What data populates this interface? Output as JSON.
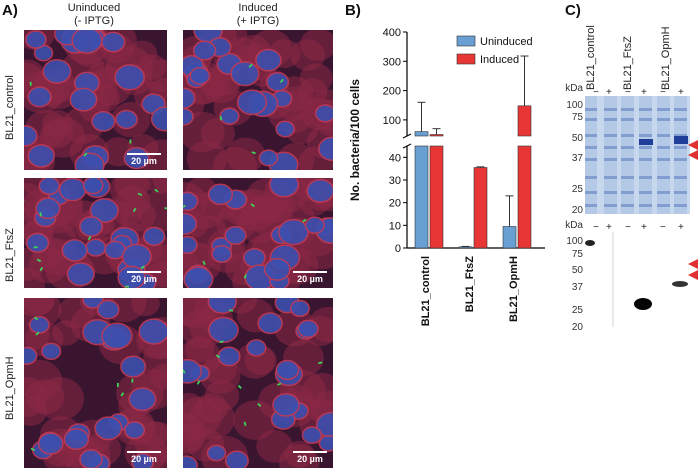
{
  "panels": {
    "a_label": "A)",
    "b_label": "B)",
    "c_label": "C)"
  },
  "panel_a": {
    "col_uninduced": [
      "Uninduced",
      "(- IPTG)"
    ],
    "col_induced": [
      "Induced",
      "(+ IPTG)"
    ],
    "rows": [
      "BL21_control",
      "BL21_FtsZ",
      "BL21_OpmH"
    ],
    "scale_bar": "20 µm"
  },
  "chart_data": {
    "type": "bar",
    "categories": [
      "BL21_control",
      "BL21_FtsZ",
      "BL21_OpmH"
    ],
    "series": [
      {
        "name": "Uninduced",
        "values": [
          60,
          0.5,
          9.5
        ],
        "error": [
          100,
          0.2,
          13.5
        ]
      },
      {
        "name": "Induced",
        "values": [
          50,
          35.5,
          148
        ],
        "error": [
          20,
          0.3,
          170
        ]
      }
    ],
    "ylabel": "No. bacteria/100 cells",
    "y_axis_break": {
      "lower": [
        0,
        45
      ],
      "upper": [
        45,
        400
      ]
    },
    "lower_ticks": [
      0,
      10,
      20,
      30,
      40
    ],
    "upper_ticks": [
      100,
      200,
      300,
      400
    ],
    "legend_position": "top-right",
    "colors": {
      "Uninduced": "#6a9fd4",
      "Induced": "#e83535"
    }
  },
  "panel_c": {
    "lanes": [
      "BL21_control",
      "BL21_FtsZ",
      "BL21_OpmH"
    ],
    "minus": "−",
    "plus": "+",
    "kda_label": "kDa",
    "top_markers": [
      "100",
      "75",
      "50",
      "37",
      "25",
      "20"
    ],
    "bottom_markers": [
      "100",
      "75",
      "50",
      "37",
      "25",
      "20"
    ],
    "arrow_color": "#e03030"
  }
}
